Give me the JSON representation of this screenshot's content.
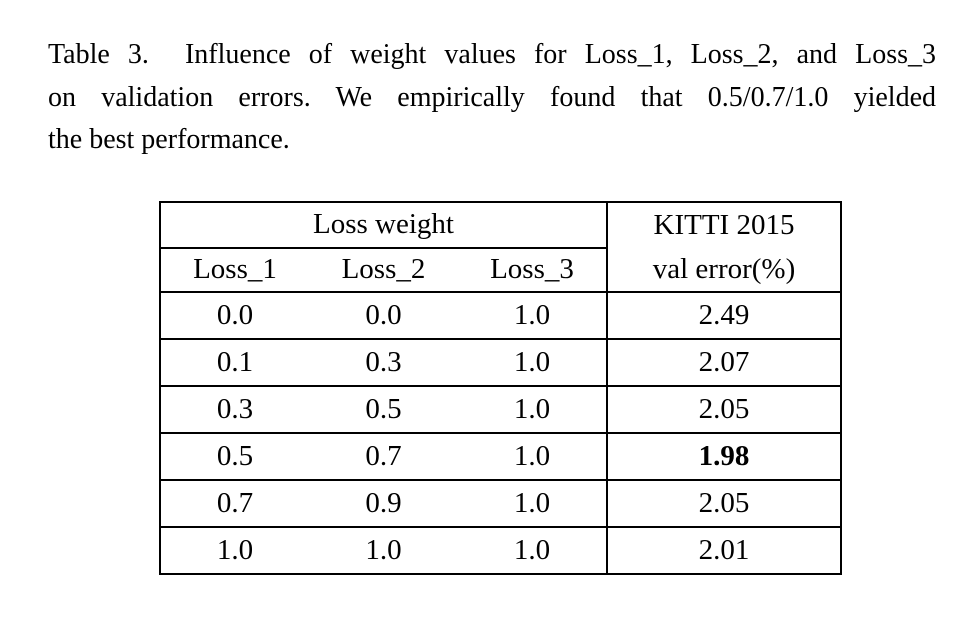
{
  "caption": {
    "lines": [
      "Table 3.  Influence of weight values for Loss_1, Loss_2, and Loss_3",
      "on validation errors. We empirically found that 0.5/0.7/1.0 yielded",
      "the best performance."
    ]
  },
  "table": {
    "header": {
      "group_label": "Loss weight",
      "columns": [
        "Loss_1",
        "Loss_2",
        "Loss_3"
      ],
      "kitti_line1": "KITTI 2015",
      "kitti_line2": "val error(%)"
    },
    "rows": [
      {
        "loss1": "0.0",
        "loss2": "0.0",
        "loss3": "1.0",
        "val_error": "2.49",
        "bold": false
      },
      {
        "loss1": "0.1",
        "loss2": "0.3",
        "loss3": "1.0",
        "val_error": "2.07",
        "bold": false
      },
      {
        "loss1": "0.3",
        "loss2": "0.5",
        "loss3": "1.0",
        "val_error": "2.05",
        "bold": false
      },
      {
        "loss1": "0.5",
        "loss2": "0.7",
        "loss3": "1.0",
        "val_error": "1.98",
        "bold": true
      },
      {
        "loss1": "0.7",
        "loss2": "0.9",
        "loss3": "1.0",
        "val_error": "2.05",
        "bold": false
      },
      {
        "loss1": "1.0",
        "loss2": "1.0",
        "loss3": "1.0",
        "val_error": "2.01",
        "bold": false
      }
    ]
  },
  "colors": {
    "background": "#ffffff",
    "text": "#000000",
    "table_border": "#000000"
  }
}
